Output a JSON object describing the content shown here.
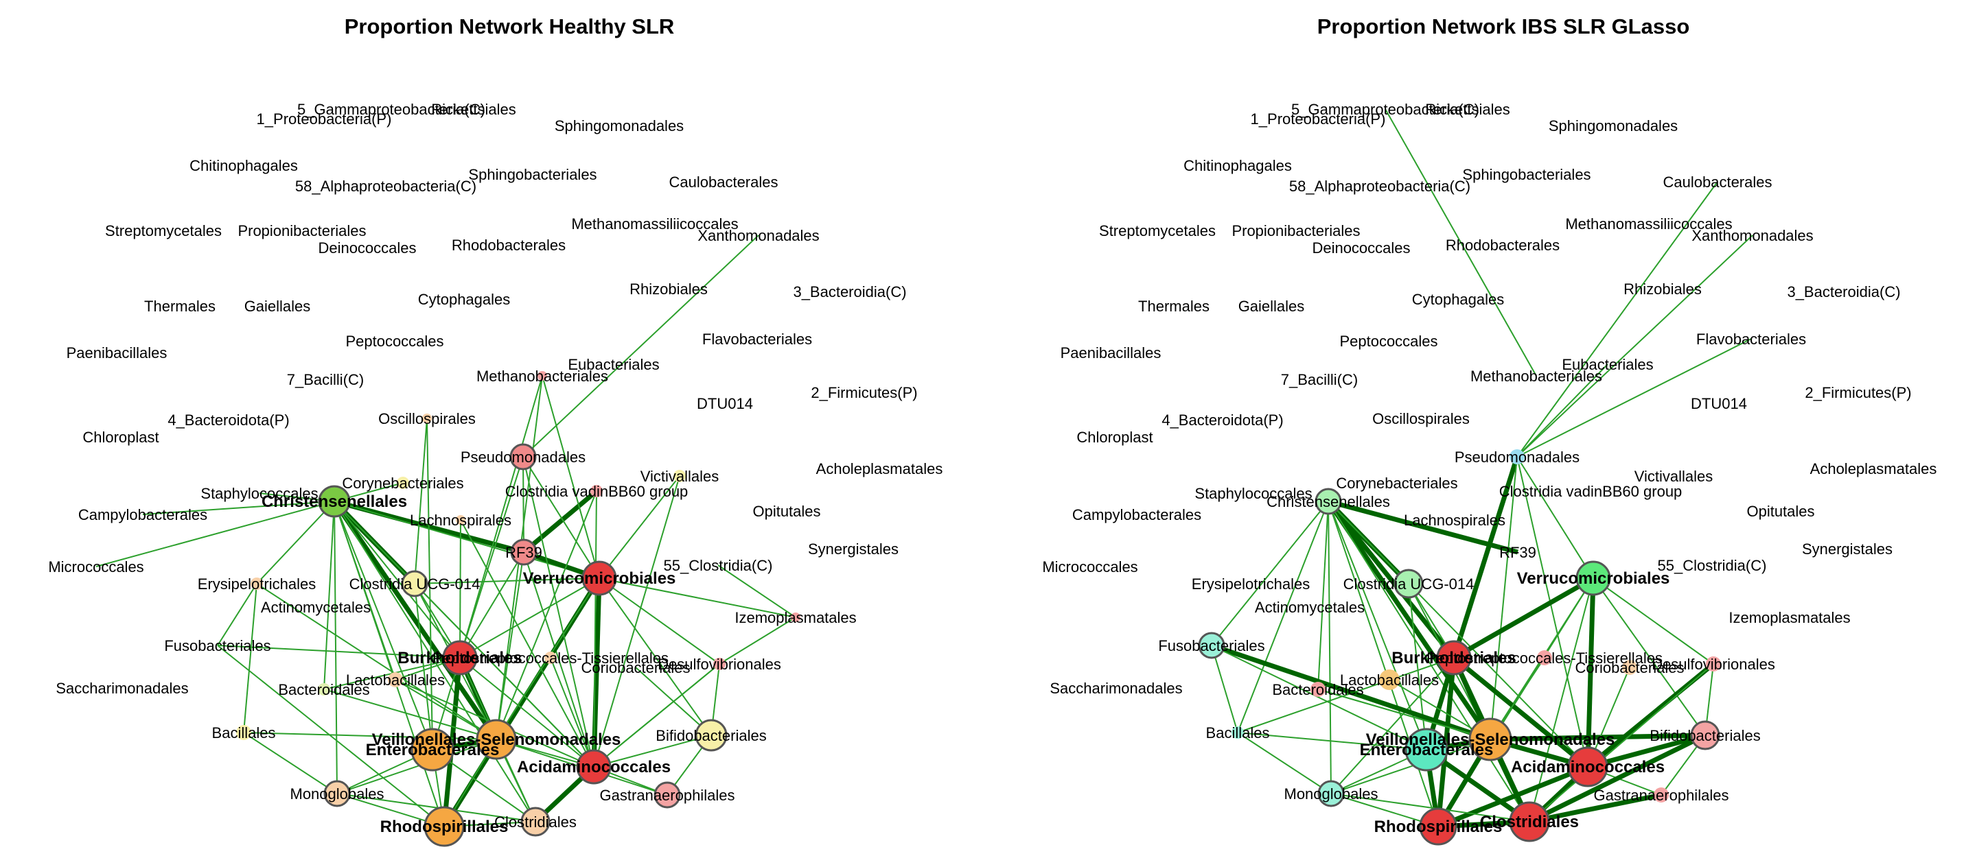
{
  "panels": [
    {
      "id": "healthy",
      "title": "Proportion Network Healthy SLR",
      "labels": [
        {
          "t": "5_Gammaproteobacteria(C)",
          "c": "none"
        },
        {
          "t": "Rickettsiales",
          "c": "none"
        },
        {
          "t": "1_Proteobacteria(P)",
          "c": "none"
        },
        {
          "t": "Sphingomonadales",
          "c": "none"
        },
        {
          "t": "Chitinophagales",
          "c": "none"
        },
        {
          "t": "Sphingobacteriales",
          "c": "none"
        },
        {
          "t": "Caulobacterales",
          "c": "none"
        },
        {
          "t": "58_Alphaproteobacteria(C)",
          "c": "none"
        },
        {
          "t": "Methanomassiliicoccales",
          "c": "none"
        },
        {
          "t": "Streptomycetales",
          "c": "none"
        },
        {
          "t": "Propionibacteriales",
          "c": "none"
        },
        {
          "t": "Xanthomonadales",
          "c": "none"
        },
        {
          "t": "Deinococcales",
          "c": "none"
        },
        {
          "t": "Rhodobacterales",
          "c": "none"
        },
        {
          "t": "Rhizobiales",
          "c": "none"
        },
        {
          "t": "3_Bacteroidia(C)",
          "c": "none"
        },
        {
          "t": "Thermales",
          "c": "none"
        },
        {
          "t": "Gaiellales",
          "c": "none"
        },
        {
          "t": "Cytophagales",
          "c": "none"
        },
        {
          "t": "Flavobacteriales",
          "c": "none"
        },
        {
          "t": "Paenibacillales",
          "c": "none"
        },
        {
          "t": "Peptococcales",
          "c": "none"
        },
        {
          "t": "Eubacteriales",
          "c": "none"
        },
        {
          "t": "Methanobacteriales",
          "c": "#f4a3a3"
        },
        {
          "t": "7_Bacilli(C)",
          "c": "none"
        },
        {
          "t": "2_Firmicutes(P)",
          "c": "none"
        },
        {
          "t": "DTU014",
          "c": "none"
        },
        {
          "t": "4_Bacteroidota(P)",
          "c": "none"
        },
        {
          "t": "Oscillospirales",
          "c": "#f8d0a8"
        },
        {
          "t": "Chloroplast",
          "c": "none"
        },
        {
          "t": "Pseudomonadales",
          "c": "#f08a8a"
        },
        {
          "t": "Acholeplasmatales",
          "c": "none"
        },
        {
          "t": "Corynebacteriales",
          "c": "#f7f0a8"
        },
        {
          "t": "Victivallales",
          "c": "#f7f0a8"
        },
        {
          "t": "Staphylococcales",
          "c": "none"
        },
        {
          "t": "Clostridia vadinBB60 group",
          "c": "#f4a3a3"
        },
        {
          "t": "Christensenellales",
          "c": "#7ac943"
        },
        {
          "t": "Opitutales",
          "c": "none"
        },
        {
          "t": "Campylobacterales",
          "c": "none"
        },
        {
          "t": "Lachnospirales",
          "c": "#f8d0a8"
        },
        {
          "t": "RF39",
          "c": "#f08a8a"
        },
        {
          "t": "Synergistales",
          "c": "none"
        },
        {
          "t": "55_Clostridia(C)",
          "c": "none"
        },
        {
          "t": "Micrococcales",
          "c": "none"
        },
        {
          "t": "Verrucomicrobiales",
          "c": "#e63c3c"
        },
        {
          "t": "Erysipelotrichales",
          "c": "#f8d0a8"
        },
        {
          "t": "Clostridia UCG-014",
          "c": "#f7f0a8"
        },
        {
          "t": "Actinomycetales",
          "c": "none"
        },
        {
          "t": "Izemoplasmatales",
          "c": "#f4a3a3"
        },
        {
          "t": "Fusobacteriales",
          "c": "none"
        },
        {
          "t": "Burkholderiales",
          "c": "#e63c3c"
        },
        {
          "t": "Peptostreptococcales-Tissierellales",
          "c": "#f8d0a8"
        },
        {
          "t": "Desulfovibrionales",
          "c": "#f4a3a3"
        },
        {
          "t": "Coriobacteriales",
          "c": "none"
        },
        {
          "t": "Lactobacillales",
          "c": "#f8d0a8"
        },
        {
          "t": "Saccharimonadales",
          "c": "none"
        },
        {
          "t": "Bacteroidales",
          "c": "#e0f0b0"
        },
        {
          "t": "Bacillales",
          "c": "#f7f0a8"
        },
        {
          "t": "Veillonellales-Selenomonadales",
          "c": "#f5a742"
        },
        {
          "t": "Bifidobacteriales",
          "c": "#f7f0a8"
        },
        {
          "t": "Enterobacterales",
          "c": "#f5a742"
        },
        {
          "t": "Acidaminococcales",
          "c": "#e63c3c"
        },
        {
          "t": "Monoglobales",
          "c": "#f8d0a8"
        },
        {
          "t": "Gastranaerophilales",
          "c": "#f4a3a3"
        },
        {
          "t": "Rhodospirillales",
          "c": "#f5a742"
        },
        {
          "t": "Clostridiales",
          "c": "#f8d0a8"
        }
      ]
    },
    {
      "id": "ibs",
      "title": "Proportion Network IBS SLR GLasso",
      "labels": [
        {
          "t": "5_Gammaproteobacteria(C)",
          "c": "none"
        },
        {
          "t": "Rickettsiales",
          "c": "none"
        },
        {
          "t": "1_Proteobacteria(P)",
          "c": "none"
        },
        {
          "t": "Sphingomonadales",
          "c": "none"
        },
        {
          "t": "Chitinophagales",
          "c": "none"
        },
        {
          "t": "Sphingobacteriales",
          "c": "none"
        },
        {
          "t": "Caulobacterales",
          "c": "none"
        },
        {
          "t": "58_Alphaproteobacteria(C)",
          "c": "none"
        },
        {
          "t": "Methanomassiliicoccales",
          "c": "none"
        },
        {
          "t": "Streptomycetales",
          "c": "none"
        },
        {
          "t": "Propionibacteriales",
          "c": "none"
        },
        {
          "t": "Xanthomonadales",
          "c": "none"
        },
        {
          "t": "Deinococcales",
          "c": "none"
        },
        {
          "t": "Rhodobacterales",
          "c": "none"
        },
        {
          "t": "Rhizobiales",
          "c": "none"
        },
        {
          "t": "3_Bacteroidia(C)",
          "c": "none"
        },
        {
          "t": "Thermales",
          "c": "none"
        },
        {
          "t": "Gaiellales",
          "c": "none"
        },
        {
          "t": "Cytophagales",
          "c": "none"
        },
        {
          "t": "Flavobacteriales",
          "c": "none"
        },
        {
          "t": "Paenibacillales",
          "c": "none"
        },
        {
          "t": "Peptococcales",
          "c": "none"
        },
        {
          "t": "Eubacteriales",
          "c": "none"
        },
        {
          "t": "Methanobacteriales",
          "c": "none"
        },
        {
          "t": "7_Bacilli(C)",
          "c": "none"
        },
        {
          "t": "2_Firmicutes(P)",
          "c": "none"
        },
        {
          "t": "DTU014",
          "c": "none"
        },
        {
          "t": "4_Bacteroidota(P)",
          "c": "none"
        },
        {
          "t": "Oscillospirales",
          "c": "none"
        },
        {
          "t": "Chloroplast",
          "c": "none"
        },
        {
          "t": "Pseudomonadales",
          "c": "#9adcf0"
        },
        {
          "t": "Acholeplasmatales",
          "c": "none"
        },
        {
          "t": "Corynebacteriales",
          "c": "none"
        },
        {
          "t": "Victivallales",
          "c": "none"
        },
        {
          "t": "Staphylococcales",
          "c": "none"
        },
        {
          "t": "Clostridia vadinBB60 group",
          "c": "none"
        },
        {
          "t": "Christensenellales",
          "c": "#a8f0b0"
        },
        {
          "t": "Opitutales",
          "c": "none"
        },
        {
          "t": "Campylobacterales",
          "c": "none"
        },
        {
          "t": "Lachnospirales",
          "c": "none"
        },
        {
          "t": "RF39",
          "c": "none"
        },
        {
          "t": "Synergistales",
          "c": "none"
        },
        {
          "t": "55_Clostridia(C)",
          "c": "none"
        },
        {
          "t": "Micrococcales",
          "c": "none"
        },
        {
          "t": "Verrucomicrobiales",
          "c": "#5ce87a"
        },
        {
          "t": "Erysipelotrichales",
          "c": "none"
        },
        {
          "t": "Clostridia UCG-014",
          "c": "#a8f0b0"
        },
        {
          "t": "Actinomycetales",
          "c": "none"
        },
        {
          "t": "Izemoplasmatales",
          "c": "none"
        },
        {
          "t": "Fusobacteriales",
          "c": "#9af0d8"
        },
        {
          "t": "Burkholderiales",
          "c": "#e63c3c"
        },
        {
          "t": "Peptostreptococcales-Tissierellales",
          "c": "#f4a3a3"
        },
        {
          "t": "Desulfovibrionales",
          "c": "#f4a3a3"
        },
        {
          "t": "Coriobacteriales",
          "c": "#f8d0a8"
        },
        {
          "t": "Lactobacillales",
          "c": "#f5c87a"
        },
        {
          "t": "Saccharimonadales",
          "c": "none"
        },
        {
          "t": "Bacteroidales",
          "c": "#f4a3a3"
        },
        {
          "t": "Bacillales",
          "c": "#9af0d8"
        },
        {
          "t": "Veillonellales-Selenomonadales",
          "c": "#f5a742"
        },
        {
          "t": "Bifidobacteriales",
          "c": "#f4a3a3"
        },
        {
          "t": "Enterobacterales",
          "c": "#5ce8c0"
        },
        {
          "t": "Acidaminococcales",
          "c": "#e63c3c"
        },
        {
          "t": "Monoglobales",
          "c": "#9af0d8"
        },
        {
          "t": "Gastranaerophilales",
          "c": "#f4a3a3"
        },
        {
          "t": "Rhodospirillales",
          "c": "#e63c3c"
        },
        {
          "t": "Clostridiales",
          "c": "#e63c3c"
        }
      ]
    }
  ],
  "colors": {
    "edge_thin": "#2ca02c",
    "edge_thick": "#006400",
    "node_stroke": "#555555",
    "text": "#000000"
  }
}
